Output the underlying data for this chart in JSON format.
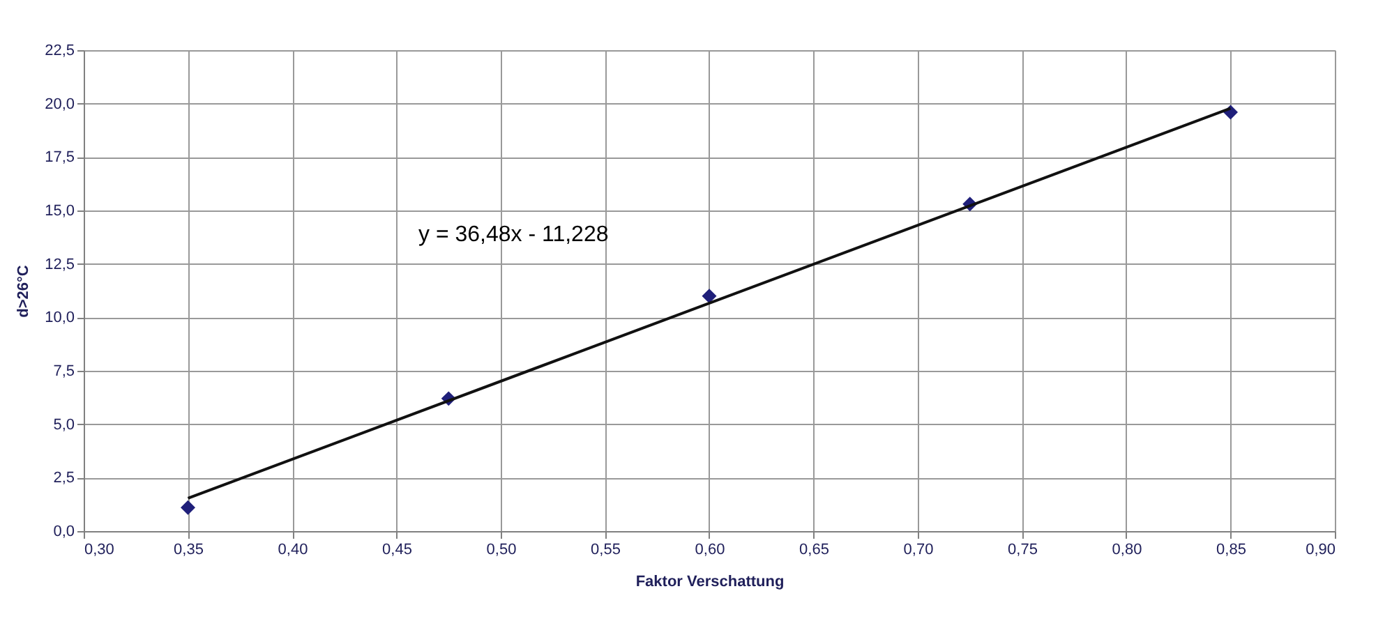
{
  "chart_data": {
    "type": "scatter",
    "xlabel": "Faktor Verschattung",
    "ylabel": "d>26°C",
    "annotations": [
      "y = 36,48x - 11,228"
    ],
    "grid": true,
    "marker": "diamond",
    "xlim": [
      0.3,
      0.9
    ],
    "ylim": [
      0,
      22.5
    ],
    "xticks": [
      {
        "value": 0.3,
        "label": "0,30"
      },
      {
        "value": 0.35,
        "label": "0,35"
      },
      {
        "value": 0.4,
        "label": "0,40"
      },
      {
        "value": 0.45,
        "label": "0,45"
      },
      {
        "value": 0.5,
        "label": "0,50"
      },
      {
        "value": 0.55,
        "label": "0,55"
      },
      {
        "value": 0.6,
        "label": "0,60"
      },
      {
        "value": 0.65,
        "label": "0,65"
      },
      {
        "value": 0.7,
        "label": "0,70"
      },
      {
        "value": 0.75,
        "label": "0,75"
      },
      {
        "value": 0.8,
        "label": "0,80"
      },
      {
        "value": 0.85,
        "label": "0,85"
      },
      {
        "value": 0.9,
        "label": "0,90"
      }
    ],
    "yticks": [
      {
        "value": 0,
        "label": "0,0"
      },
      {
        "value": 2.5,
        "label": "2,5"
      },
      {
        "value": 5,
        "label": "5,0"
      },
      {
        "value": 7.5,
        "label": "7,5"
      },
      {
        "value": 10,
        "label": "10,0"
      },
      {
        "value": 12.5,
        "label": "12,5"
      },
      {
        "value": 15,
        "label": "15,0"
      },
      {
        "value": 17.5,
        "label": "17,5"
      },
      {
        "value": 20,
        "label": "20,0"
      },
      {
        "value": 22.5,
        "label": "22,5"
      }
    ],
    "series": [
      {
        "color": "#1f1f7a",
        "x": [
          0.35,
          0.475,
          0.6,
          0.725,
          0.85
        ],
        "values": [
          1.1,
          6.2,
          11.0,
          15.3,
          19.6
        ]
      },
      {
        "type": "line",
        "marker": "none",
        "color": "#111111",
        "x": [
          0.35,
          0.85
        ],
        "values": [
          1.54,
          19.78
        ]
      }
    ]
  }
}
